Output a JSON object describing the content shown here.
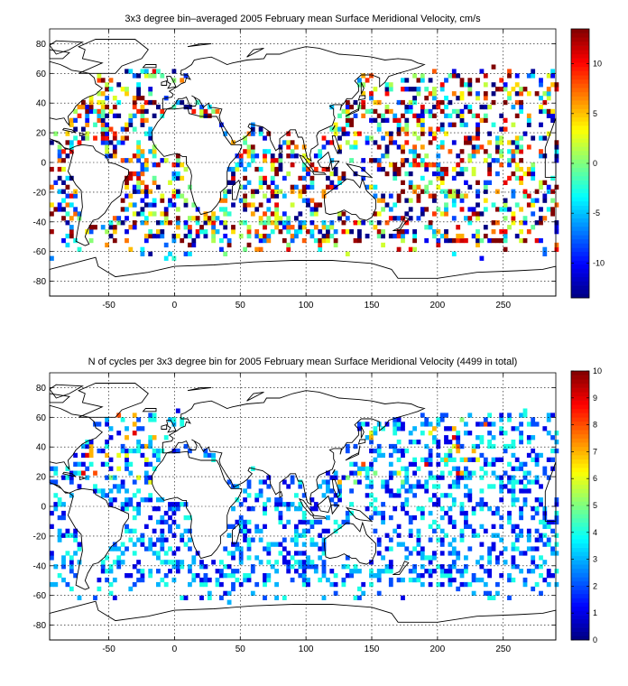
{
  "chart_data": [
    {
      "type": "heatmap",
      "title": "3x3 degree bin–averaged 2005 February mean Surface Meridional Velocity, cm/s",
      "xlabel": "",
      "ylabel": "",
      "xlim": [
        -95,
        290
      ],
      "ylim": [
        -90,
        90
      ],
      "xticks": [
        -50,
        0,
        50,
        100,
        150,
        200,
        250
      ],
      "yticks": [
        -80,
        -60,
        -40,
        -20,
        0,
        20,
        40,
        60,
        80
      ],
      "grid": true,
      "colormap": "jet",
      "colorbar": {
        "range": [
          -13.5,
          13.5
        ],
        "ticks": [
          -10,
          -5,
          0,
          5,
          10
        ],
        "placement": "right"
      },
      "bin_size_deg": 3,
      "values": "randomly scattered bins over the ocean, mixed positive and negative velocities"
    },
    {
      "type": "heatmap",
      "title": "N of cycles per 3x3 degree bin for 2005 February mean Surface Meridional Velocity (4499 in total)",
      "xlabel": "",
      "ylabel": "",
      "xlim": [
        -95,
        290
      ],
      "ylim": [
        -90,
        90
      ],
      "xticks": [
        -50,
        0,
        50,
        100,
        150,
        200,
        250
      ],
      "yticks": [
        -80,
        -60,
        -40,
        -20,
        0,
        20,
        40,
        60,
        80
      ],
      "grid": true,
      "colormap": "jet",
      "colorbar": {
        "range": [
          0,
          10
        ],
        "ticks": [
          0,
          1,
          2,
          3,
          4,
          5,
          6,
          7,
          8,
          9,
          10
        ],
        "placement": "right"
      },
      "bin_size_deg": 3,
      "total_cycles": 4499,
      "values": "mostly 1-4 cycles per bin, higher counts in North Pacific and North Atlantic"
    }
  ]
}
